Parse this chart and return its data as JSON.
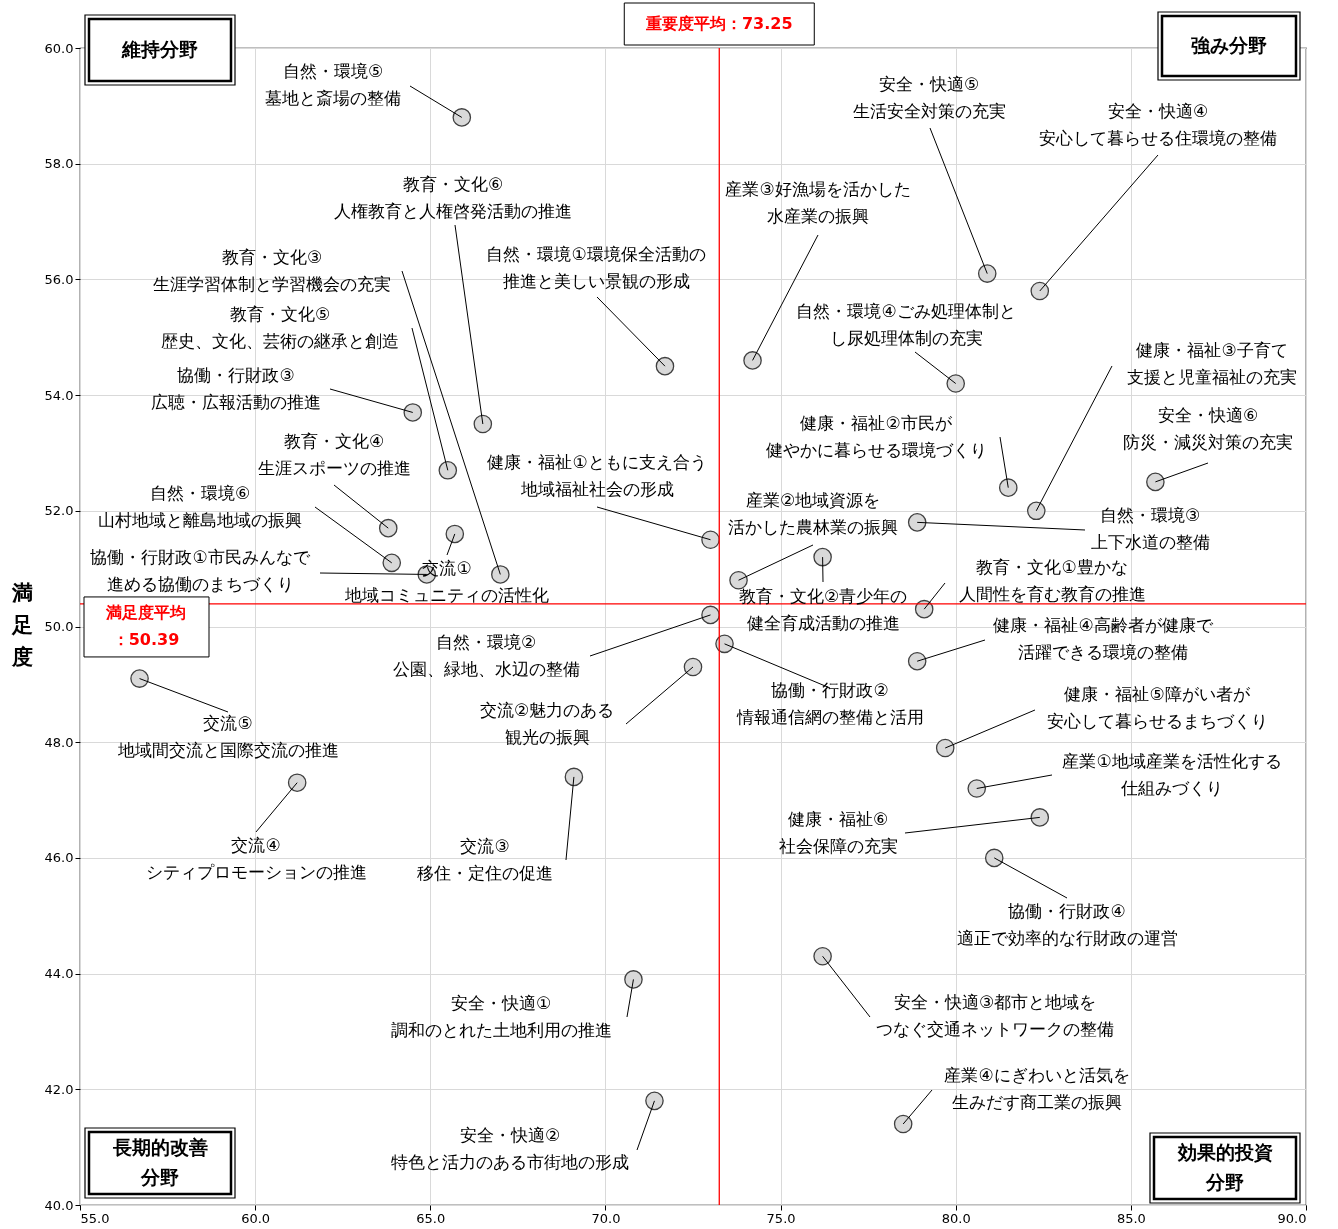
{
  "chart_data": {
    "type": "scatter",
    "ylabel": "満足度",
    "x": [
      65.9,
      80.9,
      82.4,
      74.2,
      71.7,
      80.0,
      64.5,
      66.5,
      65.5,
      82.3,
      81.5,
      85.7,
      63.8,
      65.7,
      73.0,
      78.9,
      73.8,
      63.9,
      64.9,
      67.0,
      76.2,
      79.1,
      73.0,
      73.4,
      78.9,
      72.5,
      56.7,
      79.7,
      80.6,
      61.2,
      69.1,
      82.4,
      81.1,
      78.5,
      76.2,
      70.8,
      71.4
    ],
    "series": [
      {
        "color": "#d9d9d9",
        "values": [
          58.8,
          56.1,
          55.8,
          54.6,
          54.5,
          54.2,
          53.7,
          53.5,
          52.7,
          52.0,
          52.4,
          52.5,
          51.7,
          51.6,
          51.5,
          51.8,
          50.8,
          51.1,
          50.9,
          50.9,
          51.2,
          50.3,
          50.2,
          49.7,
          49.4,
          49.3,
          49.1,
          47.9,
          47.2,
          47.3,
          47.4,
          46.7,
          46.0,
          41.4,
          44.3,
          43.9,
          41.8
        ]
      }
    ],
    "xlim": [
      55,
      90
    ],
    "xticks": [
      {
        "value": 55,
        "label": "55.0"
      },
      {
        "value": 60,
        "label": "60.0"
      },
      {
        "value": 65,
        "label": "65.0"
      },
      {
        "value": 70,
        "label": "70.0"
      },
      {
        "value": 75,
        "label": "75.0"
      },
      {
        "value": 80,
        "label": "80.0"
      },
      {
        "value": 85,
        "label": "85.0"
      },
      {
        "value": 90,
        "label": "90.0"
      }
    ],
    "ylim": [
      40,
      60
    ],
    "yticks": [
      {
        "value": 40,
        "label": "40.0"
      },
      {
        "value": 42,
        "label": "42.0"
      },
      {
        "value": 44,
        "label": "44.0"
      },
      {
        "value": 46,
        "label": "46.0"
      },
      {
        "value": 48,
        "label": "48.0"
      },
      {
        "value": 50,
        "label": "50.0"
      },
      {
        "value": 52,
        "label": "52.0"
      },
      {
        "value": 54,
        "label": "54.0"
      },
      {
        "value": 56,
        "label": "56.0"
      },
      {
        "value": 58,
        "label": "58.0"
      },
      {
        "value": 60,
        "label": "60.0"
      }
    ],
    "grid": true,
    "marker": "circle",
    "ref_lines": [
      {
        "axis": "x",
        "value": 73.25,
        "label": "重要度平均：73.25",
        "color": "#ff0000"
      },
      {
        "axis": "y",
        "value": 50.39,
        "label": "満足度平均：50.39",
        "color": "#ff0000"
      }
    ],
    "annotations": [
      {
        "text": "自然・環境⑤墓地と斎場の整備",
        "x": 65.9,
        "y": 58.8
      },
      {
        "text": "安全・快適⑤生活安全対策の充実",
        "x": 80.9,
        "y": 56.1
      },
      {
        "text": "安全・快適④安心して暮らせる住環境の整備",
        "x": 82.4,
        "y": 55.8
      },
      {
        "text": "産業③好漁場を活かした水産業の振興",
        "x": 74.2,
        "y": 54.6
      },
      {
        "text": "自然・環境①環境保全活動の推進と美しい景観の形成",
        "x": 71.7,
        "y": 54.5
      },
      {
        "text": "自然・環境④ごみ処理体制とし尿処理体制の充実",
        "x": 80.0,
        "y": 54.2
      },
      {
        "text": "協働・行財政③広聴・広報活動の推進",
        "x": 64.5,
        "y": 53.7
      },
      {
        "text": "教育・文化⑥人権教育と人権啓発活動の推進",
        "x": 66.5,
        "y": 53.5
      },
      {
        "text": "教育・文化⑤歴史、文化、芸術の継承と創造",
        "x": 65.5,
        "y": 52.7
      },
      {
        "text": "健康・福祉③子育て支援と児童福祉の充実",
        "x": 82.3,
        "y": 52.0
      },
      {
        "text": "健康・福祉②市民が健やかに暮らせる環境づくり",
        "x": 81.5,
        "y": 52.4
      },
      {
        "text": "安全・快適⑥防災・減災対策の充実",
        "x": 85.7,
        "y": 52.5
      },
      {
        "text": "教育・文化④生涯スポーツの推進",
        "x": 63.8,
        "y": 51.7
      },
      {
        "text": "交流①地域コミュニティの活性化",
        "x": 65.7,
        "y": 51.6
      },
      {
        "text": "健康・福祉①ともに支え合う地域福祉社会の形成",
        "x": 73.0,
        "y": 51.5
      },
      {
        "text": "自然・環境③上下水道の整備",
        "x": 78.9,
        "y": 51.8
      },
      {
        "text": "産業②地域資源を活かした農林業の振興",
        "x": 73.8,
        "y": 50.8
      },
      {
        "text": "自然・環境⑥山村地域と離島地域の振興",
        "x": 63.9,
        "y": 51.1
      },
      {
        "text": "協働・行財政①市民みんなで進める協働のまちづくり",
        "x": 64.9,
        "y": 50.9
      },
      {
        "text": "教育・文化③生涯学習体制と学習機会の充実",
        "x": 67.0,
        "y": 50.9
      },
      {
        "text": "教育・文化②青少年の健全育成活動の推進",
        "x": 76.2,
        "y": 51.2
      },
      {
        "text": "教育・文化①豊かな人間性を育む教育の推進",
        "x": 79.1,
        "y": 50.3
      },
      {
        "text": "自然・環境②公園、緑地、水辺の整備",
        "x": 73.0,
        "y": 50.2
      },
      {
        "text": "協働・行財政②情報通信網の整備と活用",
        "x": 73.4,
        "y": 49.7
      },
      {
        "text": "健康・福祉④高齢者が健康で活躍できる環境の整備",
        "x": 78.9,
        "y": 49.4
      },
      {
        "text": "交流②魅力のある観光の振興",
        "x": 72.5,
        "y": 49.3
      },
      {
        "text": "交流⑤地域間交流と国際交流の推進",
        "x": 56.7,
        "y": 49.1
      },
      {
        "text": "健康・福祉⑤障がい者が安心して暮らせるまちづくり",
        "x": 79.7,
        "y": 47.9
      },
      {
        "text": "産業①地域産業を活性化する仕組みづくり",
        "x": 80.6,
        "y": 47.2
      },
      {
        "text": "交流④シティプロモーションの推進",
        "x": 61.2,
        "y": 47.3
      },
      {
        "text": "交流③移住・定住の促進",
        "x": 69.1,
        "y": 47.4
      },
      {
        "text": "健康・福祉⑥社会保障の充実",
        "x": 82.4,
        "y": 46.7
      },
      {
        "text": "協働・行財政④適正で効率的な行財政の運営",
        "x": 81.1,
        "y": 46.0
      },
      {
        "text": "産業④にぎわいと活気を生みだす商工業の振興",
        "x": 78.5,
        "y": 41.4
      },
      {
        "text": "安全・快適③都市と地域をつなぐ交通ネットワークの整備",
        "x": 76.2,
        "y": 44.3
      },
      {
        "text": "安全・快適①調和のとれた土地利用の推進",
        "x": 70.8,
        "y": 43.9
      },
      {
        "text": "安全・快適②特色と活力のある市街地の形成",
        "x": 71.4,
        "y": 41.8
      },
      "維持分野",
      "強み分野",
      "長期的改善分野",
      "効果的投資分野"
    ]
  }
}
